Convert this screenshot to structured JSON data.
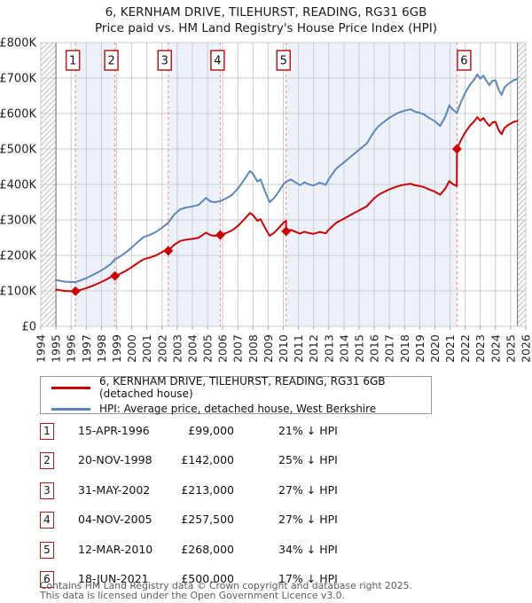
{
  "title": "6, KERNHAM DRIVE, TILEHURST, READING, RG31 6GB",
  "subtitle": "Price paid vs. HM Land Registry's House Price Index (HPI)",
  "colors": {
    "price_line": "#cc0000",
    "hpi_line": "#5c87bd",
    "ownership_band": "#edf1fa",
    "gridline": "#cccccc",
    "sale_dashed_line": "#f08484",
    "sale_box_border": "#b71c1c",
    "hatch_line": "#c0c0c0",
    "hatch_edge": "#707070",
    "axis_text": "#222222"
  },
  "chart_data": {
    "type": "line",
    "title": "6, KERNHAM DRIVE, TILEHURST, READING, RG31 6GB",
    "subtitle": "Price paid vs. HM Land Registry's House Price Index (HPI)",
    "x_axis": {
      "min": 1994,
      "max": 2026,
      "tick_years": [
        1994,
        1995,
        1996,
        1997,
        1998,
        1999,
        2000,
        2001,
        2002,
        2003,
        2004,
        2005,
        2006,
        2007,
        2008,
        2009,
        2010,
        2011,
        2012,
        2013,
        2014,
        2015,
        2016,
        2017,
        2018,
        2019,
        2020,
        2021,
        2022,
        2023,
        2024,
        2025,
        2026
      ]
    },
    "y_axis": {
      "min_k": 0,
      "max_k": 800,
      "ticks": [
        [
          0,
          "£0"
        ],
        [
          100,
          "£100K"
        ],
        [
          200,
          "£200K"
        ],
        [
          300,
          "£300K"
        ],
        [
          400,
          "£400K"
        ],
        [
          500,
          "£500K"
        ],
        [
          600,
          "£600K"
        ],
        [
          700,
          "£700K"
        ],
        [
          800,
          "£800K"
        ]
      ]
    },
    "grid": true,
    "legend_position": "below",
    "hatched_regions": [
      [
        1994,
        1995
      ],
      [
        2025.45,
        2026
      ]
    ],
    "ownership_bands": [
      [
        1996.29,
        1998.89
      ],
      [
        2002.41,
        2005.84
      ],
      [
        2010.19,
        2021.46
      ]
    ],
    "sales": [
      {
        "n": "1",
        "year": 1996.29,
        "price_k": 99,
        "box_dx": -3
      },
      {
        "n": "2",
        "year": 1998.89,
        "price_k": 142,
        "box_dx": -4
      },
      {
        "n": "3",
        "year": 2002.41,
        "price_k": 213,
        "box_dx": -4
      },
      {
        "n": "4",
        "year": 2005.84,
        "price_k": 257.5,
        "box_dx": -3
      },
      {
        "n": "5",
        "year": 2010.19,
        "price_k": 268,
        "box_dx": -3
      },
      {
        "n": "6",
        "year": 2021.46,
        "price_k": 500,
        "box_dx": 8
      }
    ],
    "series": [
      {
        "name": "6, KERNHAM DRIVE, TILEHURST, READING, RG31 6GB (detached house)",
        "color": "#cc0000",
        "unit": "GBP thousands",
        "points": [
          [
            1995,
            103.8
          ],
          [
            1995.3,
            101.4
          ],
          [
            1995.6,
            99.8
          ],
          [
            1996,
            99
          ],
          [
            1996.29,
            99
          ],
          [
            1996.6,
            102.2
          ],
          [
            1997,
            107.7
          ],
          [
            1997.4,
            114.1
          ],
          [
            1997.8,
            121.2
          ],
          [
            1998.2,
            129.1
          ],
          [
            1998.6,
            138.6
          ],
          [
            1998.88,
            149.7
          ],
          [
            1998.89,
            142
          ],
          [
            1999.2,
            147.3
          ],
          [
            1999.6,
            156.3
          ],
          [
            2000,
            166.8
          ],
          [
            2000.4,
            178.8
          ],
          [
            2000.8,
            189.3
          ],
          [
            2001.2,
            193.9
          ],
          [
            2001.6,
            199.9
          ],
          [
            2002,
            208.9
          ],
          [
            2002.4,
            219.4
          ],
          [
            2002.41,
            213
          ],
          [
            2002.8,
            229.8
          ],
          [
            2003.2,
            240.7
          ],
          [
            2003.6,
            244.4
          ],
          [
            2004,
            246.6
          ],
          [
            2004.4,
            249.5
          ],
          [
            2004.9,
            264.1
          ],
          [
            2005.2,
            256.8
          ],
          [
            2005.5,
            255.3
          ],
          [
            2005.84,
            257.5
          ],
          [
            2006.2,
            262.6
          ],
          [
            2006.6,
            269.9
          ],
          [
            2007,
            283.1
          ],
          [
            2007.4,
            300.6
          ],
          [
            2007.8,
            319.5
          ],
          [
            2008,
            313.7
          ],
          [
            2008.3,
            297.6
          ],
          [
            2008.5,
            302
          ],
          [
            2008.8,
            277.2
          ],
          [
            2009.1,
            255.3
          ],
          [
            2009.4,
            264.1
          ],
          [
            2009.7,
            277.2
          ],
          [
            2010,
            291.8
          ],
          [
            2010.18,
            297.6
          ],
          [
            2010.19,
            268
          ],
          [
            2010.5,
            272
          ],
          [
            2010.8,
            266.7
          ],
          [
            2011.1,
            261.4
          ],
          [
            2011.4,
            266.7
          ],
          [
            2011.7,
            262.8
          ],
          [
            2012,
            260.8
          ],
          [
            2012.4,
            266
          ],
          [
            2012.8,
            262.1
          ],
          [
            2013,
            272.6
          ],
          [
            2013.5,
            292.3
          ],
          [
            2014,
            303.5
          ],
          [
            2014.5,
            315.3
          ],
          [
            2015,
            327.1
          ],
          [
            2015.5,
            338.3
          ],
          [
            2016,
            361.3
          ],
          [
            2016.3,
            371.2
          ],
          [
            2016.6,
            377.7
          ],
          [
            2017,
            386.3
          ],
          [
            2017.4,
            392.8
          ],
          [
            2017.7,
            396.8
          ],
          [
            2018,
            399.4
          ],
          [
            2018.4,
            402
          ],
          [
            2018.7,
            397.4
          ],
          [
            2019,
            395.5
          ],
          [
            2019.3,
            392.2
          ],
          [
            2019.6,
            386.3
          ],
          [
            2020,
            379.7
          ],
          [
            2020.35,
            371.1
          ],
          [
            2020.7,
            388.9
          ],
          [
            2020.95,
            409.2
          ],
          [
            2021.2,
            400.7
          ],
          [
            2021.45,
            395.4
          ],
          [
            2021.46,
            500
          ],
          [
            2021.7,
            523.3
          ],
          [
            2022,
            546.5
          ],
          [
            2022.3,
            564.8
          ],
          [
            2022.6,
            578.1
          ],
          [
            2022.8,
            589.7
          ],
          [
            2023,
            579.8
          ],
          [
            2023.2,
            587.2
          ],
          [
            2023.4,
            574.8
          ],
          [
            2023.6,
            564.8
          ],
          [
            2023.8,
            574.8
          ],
          [
            2024,
            576.4
          ],
          [
            2024.2,
            554.8
          ],
          [
            2024.4,
            541.5
          ],
          [
            2024.6,
            559.8
          ],
          [
            2024.8,
            566.4
          ],
          [
            2025,
            571.4
          ],
          [
            2025.2,
            576.4
          ],
          [
            2025.45,
            578.9
          ]
        ]
      },
      {
        "name": "HPI: Average price, detached house, West Berkshire",
        "color": "#5c87bd",
        "unit": "GBP thousands",
        "points": [
          [
            1995,
            131
          ],
          [
            1995.3,
            128
          ],
          [
            1995.6,
            126
          ],
          [
            1996,
            125
          ],
          [
            1996.29,
            125
          ],
          [
            1996.6,
            129
          ],
          [
            1997,
            136
          ],
          [
            1997.4,
            144
          ],
          [
            1997.8,
            153
          ],
          [
            1998.2,
            163
          ],
          [
            1998.6,
            175
          ],
          [
            1998.89,
            189
          ],
          [
            1999.2,
            196
          ],
          [
            1999.6,
            208
          ],
          [
            2000,
            222
          ],
          [
            2000.4,
            238
          ],
          [
            2000.8,
            252
          ],
          [
            2001.2,
            258
          ],
          [
            2001.6,
            266
          ],
          [
            2002,
            278
          ],
          [
            2002.41,
            292
          ],
          [
            2002.8,
            315
          ],
          [
            2003.2,
            330
          ],
          [
            2003.6,
            335
          ],
          [
            2004,
            338
          ],
          [
            2004.4,
            342
          ],
          [
            2004.9,
            362
          ],
          [
            2005.2,
            352
          ],
          [
            2005.5,
            350
          ],
          [
            2005.84,
            353
          ],
          [
            2006.2,
            360
          ],
          [
            2006.6,
            370
          ],
          [
            2007,
            388
          ],
          [
            2007.4,
            412
          ],
          [
            2007.8,
            438
          ],
          [
            2008,
            430
          ],
          [
            2008.3,
            408
          ],
          [
            2008.5,
            414
          ],
          [
            2008.8,
            380
          ],
          [
            2009.1,
            350
          ],
          [
            2009.4,
            362
          ],
          [
            2009.7,
            380
          ],
          [
            2010,
            400
          ],
          [
            2010.19,
            408
          ],
          [
            2010.5,
            414
          ],
          [
            2010.8,
            406
          ],
          [
            2011.1,
            398
          ],
          [
            2011.4,
            406
          ],
          [
            2011.7,
            400
          ],
          [
            2012,
            397
          ],
          [
            2012.4,
            405
          ],
          [
            2012.8,
            399
          ],
          [
            2013,
            415
          ],
          [
            2013.5,
            445
          ],
          [
            2014,
            462
          ],
          [
            2014.5,
            480
          ],
          [
            2015,
            498
          ],
          [
            2015.5,
            515
          ],
          [
            2016,
            550
          ],
          [
            2016.3,
            565
          ],
          [
            2016.6,
            575
          ],
          [
            2017,
            588
          ],
          [
            2017.4,
            598
          ],
          [
            2017.7,
            604
          ],
          [
            2018,
            608
          ],
          [
            2018.4,
            612
          ],
          [
            2018.7,
            605
          ],
          [
            2019,
            602
          ],
          [
            2019.3,
            597
          ],
          [
            2019.6,
            588
          ],
          [
            2020,
            578
          ],
          [
            2020.35,
            565
          ],
          [
            2020.7,
            592
          ],
          [
            2020.95,
            623
          ],
          [
            2021.2,
            610
          ],
          [
            2021.46,
            602
          ],
          [
            2021.7,
            630
          ],
          [
            2022,
            658
          ],
          [
            2022.3,
            680
          ],
          [
            2022.6,
            696
          ],
          [
            2022.8,
            710
          ],
          [
            2023,
            698
          ],
          [
            2023.2,
            707
          ],
          [
            2023.4,
            692
          ],
          [
            2023.6,
            680
          ],
          [
            2023.8,
            692
          ],
          [
            2024,
            694
          ],
          [
            2024.2,
            668
          ],
          [
            2024.4,
            652
          ],
          [
            2024.6,
            674
          ],
          [
            2024.8,
            682
          ],
          [
            2025,
            688
          ],
          [
            2025.2,
            694
          ],
          [
            2025.45,
            697
          ]
        ]
      }
    ]
  },
  "legend": {
    "items": [
      {
        "label": "6, KERNHAM DRIVE, TILEHURST, READING, RG31 6GB (detached house)",
        "color": "#cc0000"
      },
      {
        "label": "HPI: Average price, detached house, West Berkshire",
        "color": "#5c87bd"
      }
    ]
  },
  "table": {
    "rows": [
      {
        "num": "1",
        "date": "15-APR-1996",
        "price": "£99,000",
        "delta": "21% ↓ HPI"
      },
      {
        "num": "2",
        "date": "20-NOV-1998",
        "price": "£142,000",
        "delta": "25% ↓ HPI"
      },
      {
        "num": "3",
        "date": "31-MAY-2002",
        "price": "£213,000",
        "delta": "27% ↓ HPI"
      },
      {
        "num": "4",
        "date": "04-NOV-2005",
        "price": "£257,500",
        "delta": "27% ↓ HPI"
      },
      {
        "num": "5",
        "date": "12-MAR-2010",
        "price": "£268,000",
        "delta": "34% ↓ HPI"
      },
      {
        "num": "6",
        "date": "18-JUN-2021",
        "price": "£500,000",
        "delta": "17% ↓ HPI"
      }
    ]
  },
  "footer": {
    "line1": "Contains HM Land Registry data © Crown copyright and database right 2025.",
    "line2": "This data is licensed under the Open Government Licence v3.0."
  }
}
